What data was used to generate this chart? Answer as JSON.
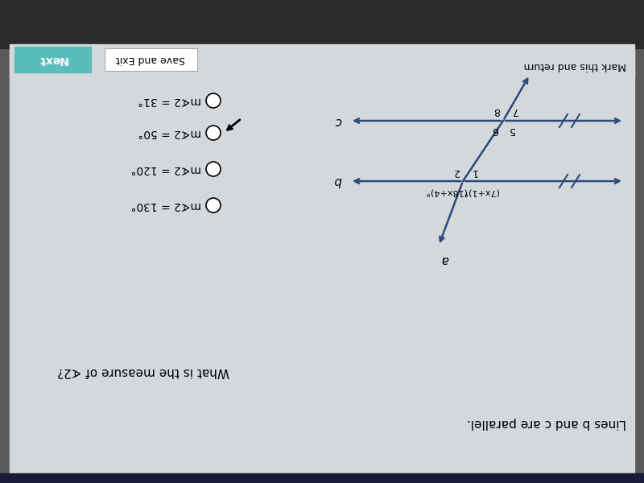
{
  "bg_outer": "#5a5a5a",
  "bg_paper": "#d8dcdf",
  "bar_color": "#2a2a2a",
  "btn_teal_color": "#5bbcbc",
  "btn_teal_text": "Next",
  "btn_save_text": "Save and Exit",
  "mark_return_text": "Mark this and return",
  "title": "Lines b and c are parallel.",
  "question": "What is the measure of ∢2?",
  "choices": [
    "m∢2 = 130°",
    "m∢2 = 120°",
    "m∢2 = 50°",
    "m∢2 = 31°"
  ],
  "selected_idx": 2,
  "line_color": "#2a4a7a",
  "line_label_b": "b",
  "line_label_c": "c",
  "trans_label": "a",
  "angle_b_right1": "1",
  "angle_b_right2": "2",
  "angle_b_left1": "(7x+1)°",
  "angle_b_left2": "(18x+4)°",
  "angle_c_ur": "7",
  "angle_c_ul": "8",
  "angle_c_lr": "5",
  "angle_c_ll": "6"
}
